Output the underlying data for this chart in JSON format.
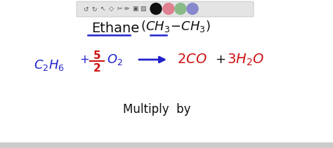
{
  "bg_color": "#ffffff",
  "toolbar_bg": "#e4e4e4",
  "blue": "#2222cc",
  "red": "#cc1111",
  "black": "#111111",
  "pink": "#e88899",
  "green": "#88bb88",
  "purple": "#8888cc",
  "fig_width": 4.74,
  "fig_height": 2.11,
  "dpi": 100
}
